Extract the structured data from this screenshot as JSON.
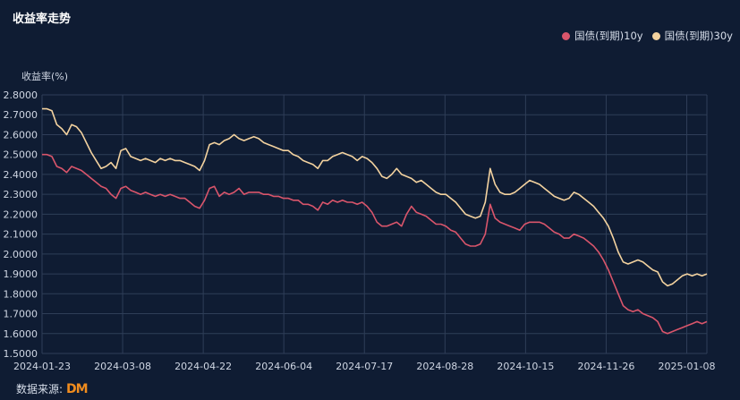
{
  "chart_data": {
    "type": "line",
    "title": "收益率走势",
    "ylabel": "收益率(%)",
    "xlabel": "",
    "ylim": [
      1.5,
      2.8
    ],
    "yticks": [
      "2.8000",
      "2.7000",
      "2.6000",
      "2.5000",
      "2.4000",
      "2.3000",
      "2.2000",
      "2.1000",
      "2.0000",
      "1.9000",
      "1.8000",
      "1.7000",
      "1.6000",
      "1.5000"
    ],
    "xticks": [
      "2024-01-23",
      "2024-03-08",
      "2024-04-22",
      "2024-06-04",
      "2024-07-17",
      "2024-08-28",
      "2024-10-15",
      "2024-11-26",
      "2025-01-08"
    ],
    "grid": true,
    "legend_position": "top-right",
    "series": [
      {
        "name": "国债(到期)10y",
        "color": "#d9556b",
        "values": [
          2.5,
          2.5,
          2.49,
          2.44,
          2.43,
          2.41,
          2.44,
          2.43,
          2.42,
          2.4,
          2.38,
          2.36,
          2.34,
          2.33,
          2.3,
          2.28,
          2.33,
          2.34,
          2.32,
          2.31,
          2.3,
          2.31,
          2.3,
          2.29,
          2.3,
          2.29,
          2.3,
          2.29,
          2.28,
          2.28,
          2.26,
          2.24,
          2.23,
          2.27,
          2.33,
          2.34,
          2.29,
          2.31,
          2.3,
          2.31,
          2.33,
          2.3,
          2.31,
          2.31,
          2.31,
          2.3,
          2.3,
          2.29,
          2.29,
          2.28,
          2.28,
          2.27,
          2.27,
          2.25,
          2.25,
          2.24,
          2.22,
          2.26,
          2.25,
          2.27,
          2.26,
          2.27,
          2.26,
          2.26,
          2.25,
          2.26,
          2.24,
          2.21,
          2.16,
          2.14,
          2.14,
          2.15,
          2.16,
          2.14,
          2.2,
          2.24,
          2.21,
          2.2,
          2.19,
          2.17,
          2.15,
          2.15,
          2.14,
          2.12,
          2.11,
          2.08,
          2.05,
          2.04,
          2.04,
          2.05,
          2.1,
          2.25,
          2.18,
          2.16,
          2.15,
          2.14,
          2.13,
          2.12,
          2.15,
          2.16,
          2.16,
          2.16,
          2.15,
          2.13,
          2.11,
          2.1,
          2.08,
          2.08,
          2.1,
          2.09,
          2.08,
          2.06,
          2.04,
          2.01,
          1.97,
          1.92,
          1.86,
          1.8,
          1.74,
          1.72,
          1.71,
          1.72,
          1.7,
          1.69,
          1.68,
          1.66,
          1.61,
          1.6,
          1.61,
          1.62,
          1.63,
          1.64,
          1.65,
          1.66,
          1.65,
          1.66
        ]
      },
      {
        "name": "国债(到期)30y",
        "color": "#f3d29f",
        "values": [
          2.73,
          2.73,
          2.72,
          2.65,
          2.63,
          2.6,
          2.65,
          2.64,
          2.61,
          2.56,
          2.51,
          2.47,
          2.43,
          2.44,
          2.46,
          2.43,
          2.52,
          2.53,
          2.49,
          2.48,
          2.47,
          2.48,
          2.47,
          2.46,
          2.48,
          2.47,
          2.48,
          2.47,
          2.47,
          2.46,
          2.45,
          2.44,
          2.42,
          2.47,
          2.55,
          2.56,
          2.55,
          2.57,
          2.58,
          2.6,
          2.58,
          2.57,
          2.58,
          2.59,
          2.58,
          2.56,
          2.55,
          2.54,
          2.53,
          2.52,
          2.52,
          2.5,
          2.49,
          2.47,
          2.46,
          2.45,
          2.43,
          2.47,
          2.47,
          2.49,
          2.5,
          2.51,
          2.5,
          2.49,
          2.47,
          2.49,
          2.48,
          2.46,
          2.43,
          2.39,
          2.38,
          2.4,
          2.43,
          2.4,
          2.39,
          2.38,
          2.36,
          2.37,
          2.35,
          2.33,
          2.31,
          2.3,
          2.3,
          2.28,
          2.26,
          2.23,
          2.2,
          2.19,
          2.18,
          2.19,
          2.26,
          2.43,
          2.35,
          2.31,
          2.3,
          2.3,
          2.31,
          2.33,
          2.35,
          2.37,
          2.36,
          2.35,
          2.33,
          2.31,
          2.29,
          2.28,
          2.27,
          2.28,
          2.31,
          2.3,
          2.28,
          2.26,
          2.24,
          2.21,
          2.18,
          2.14,
          2.08,
          2.01,
          1.96,
          1.95,
          1.96,
          1.97,
          1.96,
          1.94,
          1.92,
          1.91,
          1.86,
          1.84,
          1.85,
          1.87,
          1.89,
          1.9,
          1.89,
          1.9,
          1.89,
          1.9
        ]
      }
    ]
  },
  "legend": {
    "items": [
      {
        "label": "国债(到期)10y",
        "color": "#d9556b"
      },
      {
        "label": "国债(到期)30y",
        "color": "#f3d29f"
      }
    ]
  },
  "footer": {
    "source_label": "数据来源:",
    "logo_text": "DM"
  }
}
